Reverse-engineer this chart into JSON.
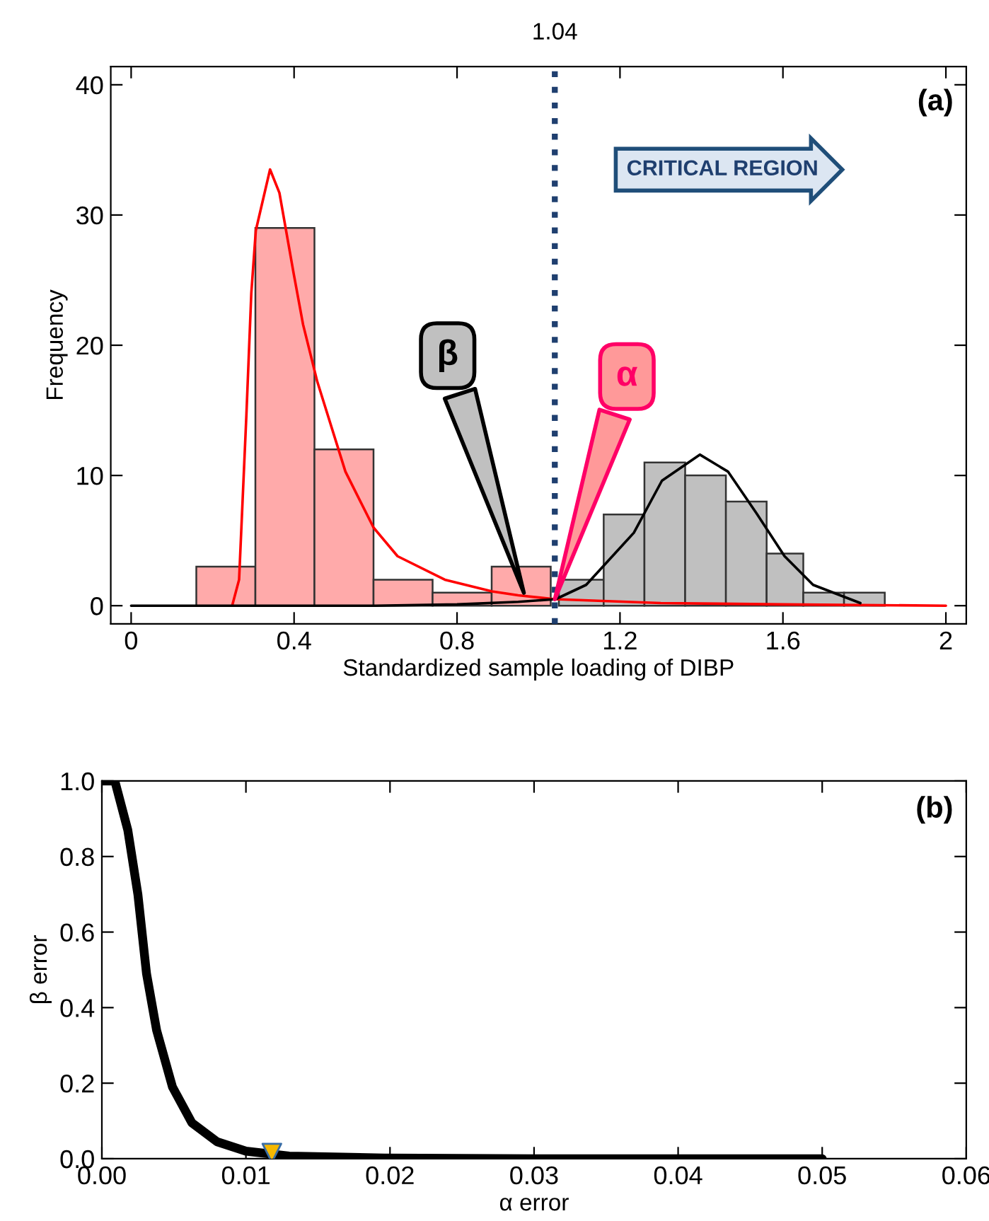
{
  "chart_data": [
    {
      "type": "histogram",
      "xlabel": "Standardized sample loading of DIBP",
      "ylabel": "Frequency",
      "xlim": [
        -0.05,
        2.05
      ],
      "xticks": [
        0,
        0.4,
        0.8,
        1.2,
        1.6,
        2
      ],
      "ylim": [
        -1.4,
        41.4
      ],
      "yticks": [
        0,
        10,
        20,
        30,
        40
      ],
      "series": [
        {
          "type": "histogram",
          "color": "#ffaaaa",
          "bins": [
            0.16,
            0.305,
            0.45,
            0.595,
            0.74,
            0.885,
            1.03
          ],
          "values": [
            3,
            29,
            12,
            2,
            1,
            3
          ]
        },
        {
          "type": "histogram",
          "color": "#c0c0c0",
          "bins": [
            1.05,
            1.16,
            1.26,
            1.36,
            1.46,
            1.56,
            1.65,
            1.75,
            1.85
          ],
          "values": [
            2,
            7,
            11,
            10,
            8,
            4,
            1,
            1
          ]
        },
        {
          "type": "line",
          "color": "#ff0000",
          "x": [
            0.248,
            0.265,
            0.283,
            0.295,
            0.306,
            0.341,
            0.364,
            0.399,
            0.422,
            0.457,
            0.526,
            0.595,
            0.654,
            0.77,
            0.886,
            0.95,
            1.04,
            1.3,
            1.6,
            2.0
          ],
          "values": [
            0,
            2,
            14.7,
            24,
            28.8,
            33.5,
            31.7,
            25.5,
            21.6,
            17.2,
            10.3,
            6,
            3.8,
            2,
            1.1,
            0.8,
            0.5,
            0.2,
            0.1,
            0
          ]
        },
        {
          "type": "line",
          "color": "#000000",
          "x": [
            0,
            0.25,
            0.6,
            0.8,
            0.95,
            1.042,
            1.117,
            1.234,
            1.303,
            1.396,
            1.465,
            1.535,
            1.604,
            1.674,
            1.79
          ],
          "values": [
            0,
            0,
            0,
            0.1,
            0.3,
            0.5,
            1.6,
            5.6,
            9.6,
            11.6,
            10.3,
            7.1,
            3.8,
            1.6,
            0.2
          ]
        }
      ],
      "ref_lines": [
        {
          "axis": "x",
          "value": 1.04,
          "label": "1.04",
          "color": "#1f3f6f",
          "line_style": "dotted"
        }
      ],
      "annotations": [
        "(a)",
        "CRITICAL REGION",
        {
          "text": "β",
          "x": 0.967,
          "y": 0.7
        },
        {
          "text": "α",
          "x": 1.037,
          "y": 0.2
        }
      ]
    },
    {
      "type": "line",
      "xlabel": "α error",
      "ylabel": "β error",
      "xlim": [
        0,
        0.06
      ],
      "xticks": [
        {
          "value": 0,
          "label": "0.00"
        },
        {
          "value": 0.01,
          "label": "0.01"
        },
        {
          "value": 0.02,
          "label": "0.02"
        },
        {
          "value": 0.03,
          "label": "0.03"
        },
        {
          "value": 0.04,
          "label": "0.04"
        },
        {
          "value": 0.05,
          "label": "0.05"
        },
        {
          "value": 0.06,
          "label": "0.06"
        }
      ],
      "ylim": [
        0,
        1.0
      ],
      "yticks": [
        {
          "value": 0,
          "label": "0.0"
        },
        {
          "value": 0.2,
          "label": "0.2"
        },
        {
          "value": 0.4,
          "label": "0.4"
        },
        {
          "value": 0.6,
          "label": "0.6"
        },
        {
          "value": 0.8,
          "label": "0.8"
        },
        {
          "value": 1.0,
          "label": "1.0"
        }
      ],
      "series": [
        {
          "type": "line",
          "color": "#000000",
          "x": [
            0,
            0.0009,
            0.0018,
            0.0025,
            0.0031,
            0.0038,
            0.0049,
            0.00625,
            0.008,
            0.01,
            0.013,
            0.0196,
            0.03,
            0.05
          ],
          "values": [
            1.0,
            1.0,
            0.87,
            0.7,
            0.49,
            0.34,
            0.19,
            0.095,
            0.045,
            0.02,
            0.007,
            0.002,
            0,
            0
          ]
        },
        {
          "type": "scatter",
          "color": "#f5b800",
          "marker": "triangle",
          "x": [
            0.0118
          ],
          "values": [
            0.015
          ]
        }
      ],
      "annotations": [
        "(b)"
      ]
    }
  ]
}
